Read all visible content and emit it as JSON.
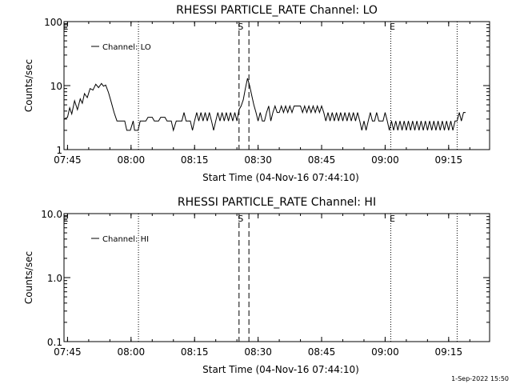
{
  "footer": {
    "timestamp": "1-Sep-2022 15:50"
  },
  "chart_data": [
    {
      "type": "line",
      "title": "RHESSI PARTICLE_RATE Channel: LO",
      "xlabel": "Start Time (04-Nov-16 07:44:10)",
      "ylabel": "Counts/sec",
      "yscale": "log",
      "ylim": [
        1,
        100
      ],
      "xlim": [
        "07:44:10",
        "09:24:40"
      ],
      "xticks": [
        "07:45",
        "08:00",
        "08:15",
        "08:30",
        "08:45",
        "09:00",
        "09:15"
      ],
      "yticks": [
        "1",
        "10",
        "100"
      ],
      "legend": {
        "placement": "top-left",
        "entries": [
          "Channel: LO"
        ]
      },
      "markers": [
        {
          "label": "E",
          "time": "07:44:10",
          "style": "dotted"
        },
        {
          "label": "",
          "time": "08:01:45",
          "style": "dotted"
        },
        {
          "label": "S",
          "time": "08:25:30",
          "style": "dashed"
        },
        {
          "label": "",
          "time": "08:27:50",
          "style": "dashed"
        },
        {
          "label": "E",
          "time": "09:01:20",
          "style": "dotted"
        },
        {
          "label": "",
          "time": "09:17:00",
          "style": "dotted"
        }
      ],
      "series": [
        {
          "name": "Channel: LO",
          "points": [
            [
              "07:44:10",
              3
            ],
            [
              "07:45:00",
              3.2
            ],
            [
              "07:45:30",
              4.5
            ],
            [
              "07:46:00",
              3.6
            ],
            [
              "07:46:40",
              5.8
            ],
            [
              "07:47:20",
              4.2
            ],
            [
              "07:48:00",
              6.2
            ],
            [
              "07:48:30",
              5.3
            ],
            [
              "07:49:00",
              7.5
            ],
            [
              "07:49:40",
              6.5
            ],
            [
              "07:50:20",
              9
            ],
            [
              "07:51:00",
              8.5
            ],
            [
              "07:51:40",
              10.5
            ],
            [
              "07:52:20",
              9.3
            ],
            [
              "07:53:00",
              10.8
            ],
            [
              "07:53:30",
              9.8
            ],
            [
              "07:54:00",
              10.2
            ],
            [
              "07:54:40",
              7.8
            ],
            [
              "07:55:20",
              5.5
            ],
            [
              "07:56:00",
              3.8
            ],
            [
              "07:56:40",
              2.8
            ],
            [
              "07:57:30",
              2.8
            ],
            [
              "07:58:30",
              2.8
            ],
            [
              "07:59:00",
              2
            ],
            [
              "07:59:50",
              2
            ],
            [
              "08:00:30",
              2.8
            ],
            [
              "08:00:50",
              2
            ],
            [
              "08:01:40",
              2
            ],
            [
              "08:02:10",
              2.8
            ],
            [
              "08:03:30",
              2.8
            ],
            [
              "08:04:00",
              3.2
            ],
            [
              "08:05:00",
              3.2
            ],
            [
              "08:05:30",
              2.8
            ],
            [
              "08:06:30",
              2.8
            ],
            [
              "08:07:00",
              3.2
            ],
            [
              "08:08:00",
              3.2
            ],
            [
              "08:08:30",
              2.8
            ],
            [
              "08:09:30",
              2.8
            ],
            [
              "08:10:00",
              2
            ],
            [
              "08:10:40",
              2.8
            ],
            [
              "08:12:00",
              2.8
            ],
            [
              "08:12:30",
              3.8
            ],
            [
              "08:13:00",
              2.8
            ],
            [
              "08:14:00",
              2.8
            ],
            [
              "08:14:30",
              2
            ],
            [
              "08:15:00",
              2.8
            ],
            [
              "08:15:30",
              3.8
            ],
            [
              "08:16:00",
              2.8
            ],
            [
              "08:16:30",
              3.8
            ],
            [
              "08:17:00",
              2.8
            ],
            [
              "08:17:30",
              3.8
            ],
            [
              "08:18:00",
              2.8
            ],
            [
              "08:18:30",
              3.8
            ],
            [
              "08:19:00",
              2.8
            ],
            [
              "08:19:30",
              2
            ],
            [
              "08:20:00",
              2.8
            ],
            [
              "08:20:30",
              3.8
            ],
            [
              "08:21:00",
              2.8
            ],
            [
              "08:21:30",
              3.8
            ],
            [
              "08:22:00",
              2.8
            ],
            [
              "08:22:30",
              3.8
            ],
            [
              "08:23:00",
              2.8
            ],
            [
              "08:23:30",
              3.8
            ],
            [
              "08:24:00",
              2.8
            ],
            [
              "08:24:30",
              3.8
            ],
            [
              "08:25:00",
              2.8
            ],
            [
              "08:25:30",
              4.2
            ],
            [
              "08:26:00",
              4.8
            ],
            [
              "08:26:30",
              6
            ],
            [
              "08:27:00",
              9
            ],
            [
              "08:27:30",
              13
            ],
            [
              "08:28:00",
              10
            ],
            [
              "08:28:30",
              7
            ],
            [
              "08:29:00",
              5
            ],
            [
              "08:29:30",
              3.8
            ],
            [
              "08:30:00",
              2.8
            ],
            [
              "08:30:30",
              3.8
            ],
            [
              "08:31:00",
              2.8
            ],
            [
              "08:31:30",
              2.8
            ],
            [
              "08:32:00",
              3.8
            ],
            [
              "08:32:30",
              4.8
            ],
            [
              "08:33:00",
              2.8
            ],
            [
              "08:33:30",
              3.8
            ],
            [
              "08:34:00",
              4.8
            ],
            [
              "08:34:30",
              3.8
            ],
            [
              "08:35:00",
              3.8
            ],
            [
              "08:35:30",
              4.8
            ],
            [
              "08:36:00",
              3.8
            ],
            [
              "08:36:30",
              4.8
            ],
            [
              "08:37:00",
              3.8
            ],
            [
              "08:37:30",
              4.8
            ],
            [
              "08:38:00",
              3.8
            ],
            [
              "08:38:30",
              4.8
            ],
            [
              "08:40:00",
              4.8
            ],
            [
              "08:40:30",
              3.8
            ],
            [
              "08:41:00",
              4.8
            ],
            [
              "08:41:30",
              3.8
            ],
            [
              "08:42:00",
              4.8
            ],
            [
              "08:42:30",
              3.8
            ],
            [
              "08:43:00",
              4.8
            ],
            [
              "08:43:30",
              3.8
            ],
            [
              "08:44:00",
              4.8
            ],
            [
              "08:44:30",
              3.8
            ],
            [
              "08:45:00",
              4.8
            ],
            [
              "08:45:30",
              3.8
            ],
            [
              "08:46:00",
              2.8
            ],
            [
              "08:46:30",
              3.8
            ],
            [
              "08:47:00",
              2.8
            ],
            [
              "08:47:30",
              3.8
            ],
            [
              "08:48:00",
              2.8
            ],
            [
              "08:48:30",
              3.8
            ],
            [
              "08:49:00",
              2.8
            ],
            [
              "08:49:30",
              3.8
            ],
            [
              "08:50:00",
              2.8
            ],
            [
              "08:50:30",
              3.8
            ],
            [
              "08:51:00",
              2.8
            ],
            [
              "08:51:30",
              3.8
            ],
            [
              "08:52:00",
              2.8
            ],
            [
              "08:52:30",
              3.8
            ],
            [
              "08:53:00",
              2.8
            ],
            [
              "08:53:30",
              3.8
            ],
            [
              "08:54:00",
              2.8
            ],
            [
              "08:54:30",
              2
            ],
            [
              "08:55:00",
              2.8
            ],
            [
              "08:55:30",
              2
            ],
            [
              "08:56:00",
              2.8
            ],
            [
              "08:56:30",
              3.8
            ],
            [
              "08:57:00",
              2.8
            ],
            [
              "08:57:30",
              2.8
            ],
            [
              "08:58:00",
              3.8
            ],
            [
              "08:58:30",
              2.8
            ],
            [
              "08:59:30",
              2.8
            ],
            [
              "09:00:00",
              3.8
            ],
            [
              "09:00:30",
              2.8
            ],
            [
              "09:01:00",
              2
            ],
            [
              "09:01:30",
              2.8
            ],
            [
              "09:02:00",
              2
            ],
            [
              "09:02:30",
              2.8
            ],
            [
              "09:03:00",
              2
            ],
            [
              "09:03:30",
              2.8
            ],
            [
              "09:04:00",
              2
            ],
            [
              "09:04:30",
              2.8
            ],
            [
              "09:05:00",
              2
            ],
            [
              "09:05:30",
              2.8
            ],
            [
              "09:06:00",
              2
            ],
            [
              "09:06:30",
              2.8
            ],
            [
              "09:07:00",
              2
            ],
            [
              "09:07:30",
              2.8
            ],
            [
              "09:08:00",
              2
            ],
            [
              "09:08:30",
              2.8
            ],
            [
              "09:09:00",
              2
            ],
            [
              "09:09:30",
              2.8
            ],
            [
              "09:10:00",
              2
            ],
            [
              "09:10:30",
              2.8
            ],
            [
              "09:11:00",
              2
            ],
            [
              "09:11:30",
              2.8
            ],
            [
              "09:12:00",
              2
            ],
            [
              "09:12:30",
              2.8
            ],
            [
              "09:13:00",
              2
            ],
            [
              "09:13:30",
              2.8
            ],
            [
              "09:14:00",
              2
            ],
            [
              "09:14:30",
              2.8
            ],
            [
              "09:15:00",
              2
            ],
            [
              "09:15:30",
              2.8
            ],
            [
              "09:16:00",
              2
            ],
            [
              "09:16:30",
              2.8
            ],
            [
              "09:17:00",
              2.8
            ],
            [
              "09:17:30",
              3.8
            ],
            [
              "09:18:00",
              2.8
            ],
            [
              "09:18:30",
              3.8
            ],
            [
              "09:19:00",
              3.8
            ]
          ]
        }
      ]
    },
    {
      "type": "line",
      "title": "RHESSI PARTICLE_RATE Channel: HI",
      "xlabel": "Start Time (04-Nov-16 07:44:10)",
      "ylabel": "Counts/sec",
      "yscale": "log",
      "ylim": [
        0.1,
        10
      ],
      "xlim": [
        "07:44:10",
        "09:24:40"
      ],
      "xticks": [
        "07:45",
        "08:00",
        "08:15",
        "08:30",
        "08:45",
        "09:00",
        "09:15"
      ],
      "yticks": [
        "0.1",
        "1.0",
        "10.0"
      ],
      "legend": {
        "placement": "top-left",
        "entries": [
          "Channel: HI"
        ]
      },
      "markers": [
        {
          "label": "E",
          "time": "07:44:10",
          "style": "dotted"
        },
        {
          "label": "",
          "time": "08:01:45",
          "style": "dotted"
        },
        {
          "label": "S",
          "time": "08:25:30",
          "style": "dashed"
        },
        {
          "label": "",
          "time": "08:27:50",
          "style": "dashed"
        },
        {
          "label": "E",
          "time": "09:01:20",
          "style": "dotted"
        },
        {
          "label": "",
          "time": "09:17:00",
          "style": "dotted"
        }
      ],
      "series": [
        {
          "name": "Channel: HI",
          "points": []
        }
      ]
    }
  ]
}
